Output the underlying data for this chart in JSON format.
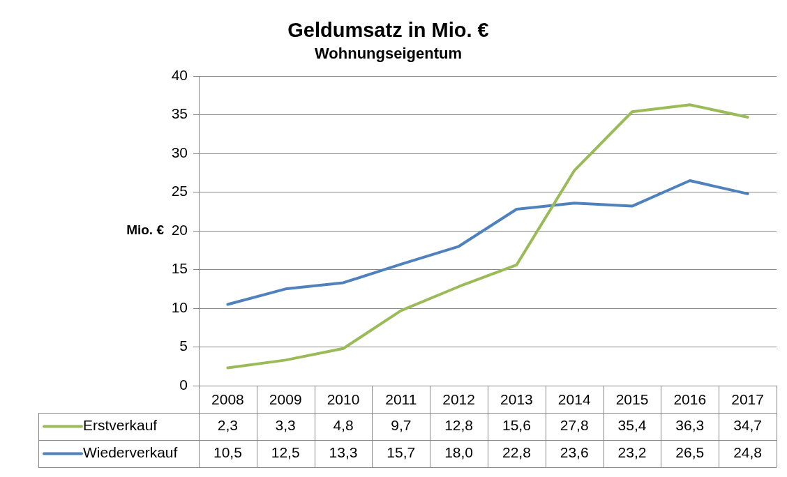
{
  "chart_data": {
    "type": "line",
    "title": "Geldumsatz in Mio. €",
    "subtitle": "Wohnungseigentum",
    "ylabel": "Mio. €",
    "categories": [
      "2008",
      "2009",
      "2010",
      "2011",
      "2012",
      "2013",
      "2014",
      "2015",
      "2016",
      "2017"
    ],
    "series": [
      {
        "name": "Erstverkauf",
        "color": "#9bbb59",
        "values": [
          2.3,
          3.3,
          4.8,
          9.7,
          12.8,
          15.6,
          27.8,
          35.4,
          36.3,
          34.7
        ],
        "value_labels": [
          "2,3",
          "3,3",
          "4,8",
          "9,7",
          "12,8",
          "15,6",
          "27,8",
          "35,4",
          "36,3",
          "34,7"
        ]
      },
      {
        "name": "Wiederverkauf",
        "color": "#4f81bd",
        "values": [
          10.5,
          12.5,
          13.3,
          15.7,
          18.0,
          22.8,
          23.6,
          23.2,
          26.5,
          24.8
        ],
        "value_labels": [
          "10,5",
          "12,5",
          "13,3",
          "15,7",
          "18,0",
          "22,8",
          "23,6",
          "23,2",
          "26,5",
          "24,8"
        ]
      }
    ],
    "ylim": [
      0,
      40
    ],
    "yticks": [
      0,
      5,
      10,
      15,
      20,
      25,
      30,
      35,
      40
    ],
    "grid": "y",
    "legend": "bottom",
    "marker": "none",
    "line_style": "solid"
  }
}
